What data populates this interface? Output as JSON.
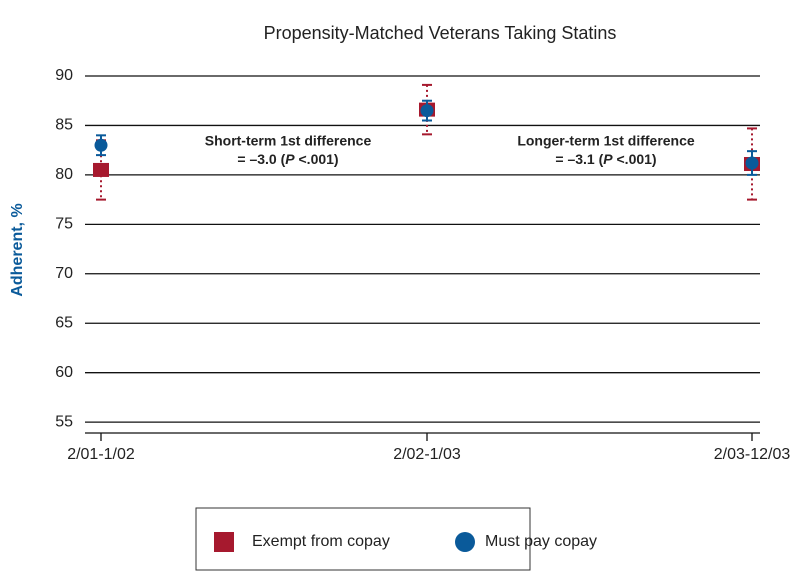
{
  "chart_data": {
    "type": "errorbar",
    "title": "Propensity-Matched Veterans Taking Statins",
    "y_label": "Adherent, %",
    "categories": [
      "2/01-1/02",
      "2/02-1/03",
      "2/03-12/03"
    ],
    "series": [
      {
        "name": "Exempt from copay",
        "color": "#a6192e",
        "marker": "square",
        "values": [
          80.5,
          86.6,
          81.1
        ],
        "errors": [
          3.0,
          2.5,
          3.6
        ]
      },
      {
        "name": "Must pay copay",
        "color": "#0a5a9a",
        "marker": "circle",
        "values": [
          83.0,
          86.5,
          81.2
        ],
        "errors": [
          1.0,
          1.0,
          1.2
        ]
      }
    ],
    "ylim": [
      53.9,
      90
    ],
    "yticks": [
      55,
      60,
      65,
      70,
      75,
      80,
      85,
      90
    ],
    "grid": true,
    "legend": "bottom",
    "annotations": [
      {
        "line1": "Short-term 1st difference",
        "line2": [
          "= –3.0 (",
          "P",
          " <.001)"
        ]
      },
      {
        "line1": "Longer-term 1st difference",
        "line2": [
          "= –3.1 (",
          "P",
          " <.001)"
        ]
      }
    ]
  }
}
